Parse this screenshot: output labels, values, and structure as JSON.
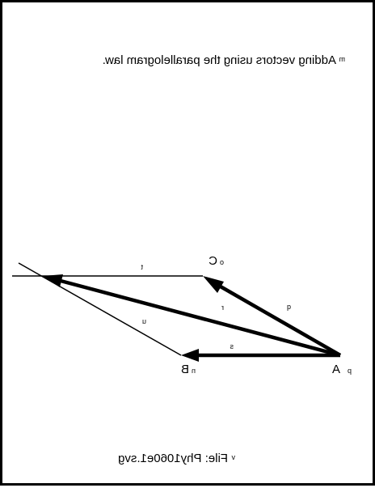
{
  "title": "Adding vectors using the parallelogram law.",
  "title_marker": "m",
  "file_label": "File: Phy1060e1.svg",
  "file_marker": "v",
  "points": {
    "A": {
      "label": "A",
      "marker": "p"
    },
    "B": {
      "label": "B",
      "marker": "n"
    },
    "C": {
      "label": "C",
      "marker": "o"
    }
  },
  "segments": {
    "q": "q",
    "r": "r",
    "s": "s",
    "t": "t",
    "u": "u"
  },
  "colors": {
    "ink": "#000000",
    "background": "#ffffff"
  }
}
